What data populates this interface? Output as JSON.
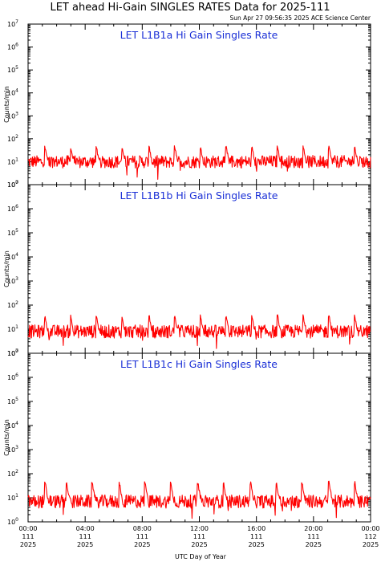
{
  "title": "LET ahead Hi-Gain SINGLES RATES Data for 2025-111",
  "timestamp": "Sun Apr 27 09:56:35 2025 ACE Science Center",
  "xlabel": "UTC Day of Year",
  "ylabel": "Counts/min",
  "chart_data": [
    {
      "type": "line",
      "title": "LET L1B1a Hi Gain Singles Rate",
      "ylabel": "Counts/min",
      "y_scale": "log",
      "ylim": [
        1,
        10000000
      ],
      "xlim_hours": [
        0,
        24
      ],
      "series": [
        {
          "color": "#ff0000",
          "baseline": 10,
          "spike_hours": [
            1.2,
            3.0,
            4.8,
            6.6,
            8.5,
            10.3,
            12.1,
            13.9,
            15.7,
            17.5,
            19.3,
            21.1,
            22.9
          ],
          "spike_peak": 50,
          "typical_range": [
            5,
            20
          ]
        }
      ]
    },
    {
      "type": "line",
      "title": "LET L1B1b Hi Gain Singles Rate",
      "ylabel": "Counts/min",
      "y_scale": "log",
      "ylim": [
        1,
        10000000
      ],
      "xlim_hours": [
        0,
        24
      ],
      "series": [
        {
          "color": "#ff0000",
          "baseline": 8,
          "spike_hours": [
            1.2,
            3.0,
            4.8,
            6.6,
            8.5,
            10.3,
            12.1,
            13.9,
            15.7,
            17.5,
            19.3,
            21.1,
            22.9
          ],
          "spike_peak": 40,
          "typical_range": [
            4,
            15
          ]
        }
      ]
    },
    {
      "type": "line",
      "title": "LET L1B1c Hi Gain Singles Rate",
      "ylabel": "Counts/min",
      "y_scale": "log",
      "ylim": [
        1,
        10000000
      ],
      "xlim_hours": [
        0,
        24
      ],
      "series": [
        {
          "color": "#ff0000",
          "baseline": 7,
          "spike_hours": [
            1.2,
            2.7,
            4.5,
            6.4,
            8.2,
            10.0,
            11.9,
            13.7,
            15.6,
            17.4,
            19.2,
            21.1,
            22.9
          ],
          "spike_peak": 50,
          "typical_range": [
            4,
            15
          ]
        }
      ]
    }
  ],
  "y_ticks": [
    {
      "base": "10",
      "exp": "0"
    },
    {
      "base": "10",
      "exp": "1"
    },
    {
      "base": "10",
      "exp": "2"
    },
    {
      "base": "10",
      "exp": "3"
    },
    {
      "base": "10",
      "exp": "4"
    },
    {
      "base": "10",
      "exp": "5"
    },
    {
      "base": "10",
      "exp": "6"
    },
    {
      "base": "10",
      "exp": "7"
    }
  ],
  "x_ticks": [
    {
      "time": "00:00",
      "day": "111",
      "year": "2025"
    },
    {
      "time": "04:00",
      "day": "111",
      "year": "2025"
    },
    {
      "time": "08:00",
      "day": "111",
      "year": "2025"
    },
    {
      "time": "12:00",
      "day": "111",
      "year": "2025"
    },
    {
      "time": "16:00",
      "day": "111",
      "year": "2025"
    },
    {
      "time": "20:00",
      "day": "111",
      "year": "2025"
    },
    {
      "time": "00:00",
      "day": "112",
      "year": "2025"
    }
  ]
}
